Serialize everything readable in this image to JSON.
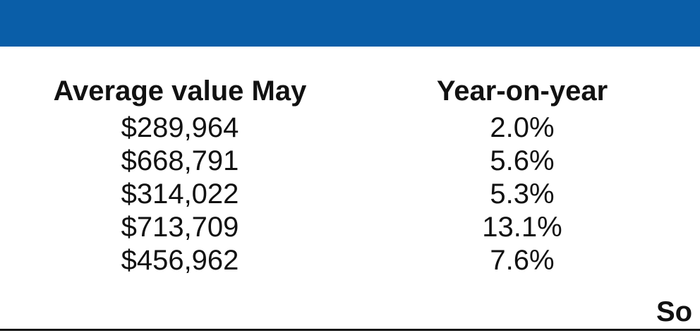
{
  "header": {
    "color": "#0a5ea8"
  },
  "table": {
    "columns": [
      "Average value May",
      "Year-on-year"
    ],
    "rows": [
      [
        "$289,964",
        "2.0%"
      ],
      [
        "$668,791",
        "5.6%"
      ],
      [
        "$314,022",
        "5.3%"
      ],
      [
        "$713,709",
        "13.1%"
      ],
      [
        "$456,962",
        "7.6%"
      ]
    ]
  },
  "footer": {
    "source_label": "So"
  }
}
